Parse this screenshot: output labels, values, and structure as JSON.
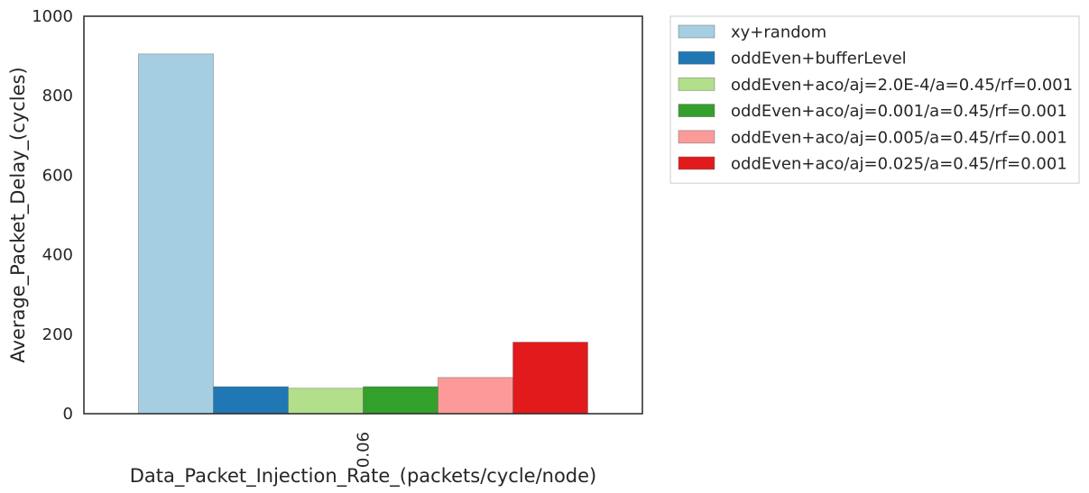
{
  "chart_data": {
    "type": "bar",
    "categories": [
      "0.06"
    ],
    "series": [
      {
        "name": "xy+random",
        "values": [
          905
        ],
        "color": "#a6cee3"
      },
      {
        "name": "oddEven+bufferLevel",
        "values": [
          68
        ],
        "color": "#1f78b4"
      },
      {
        "name": "oddEven+aco/aj=2.0E-4/a=0.45/rf=0.001",
        "values": [
          64
        ],
        "color": "#b2df8a"
      },
      {
        "name": "oddEven+aco/aj=0.001/a=0.45/rf=0.001",
        "values": [
          68
        ],
        "color": "#33a02c"
      },
      {
        "name": "oddEven+aco/aj=0.005/a=0.45/rf=0.001",
        "values": [
          91
        ],
        "color": "#fb9a99"
      },
      {
        "name": "oddEven+aco/aj=0.025/a=0.45/rf=0.001",
        "values": [
          180
        ],
        "color": "#e31a1c"
      }
    ],
    "xlabel": "Data_Packet_Injection_Rate_(packets/cycle/node)",
    "ylabel": "Average_Packet_Delay_(cycles)",
    "ylim": [
      0,
      1000
    ],
    "yticks": [
      0,
      200,
      400,
      600,
      800,
      1000
    ],
    "grid": false,
    "legend_position": "outside-right"
  }
}
